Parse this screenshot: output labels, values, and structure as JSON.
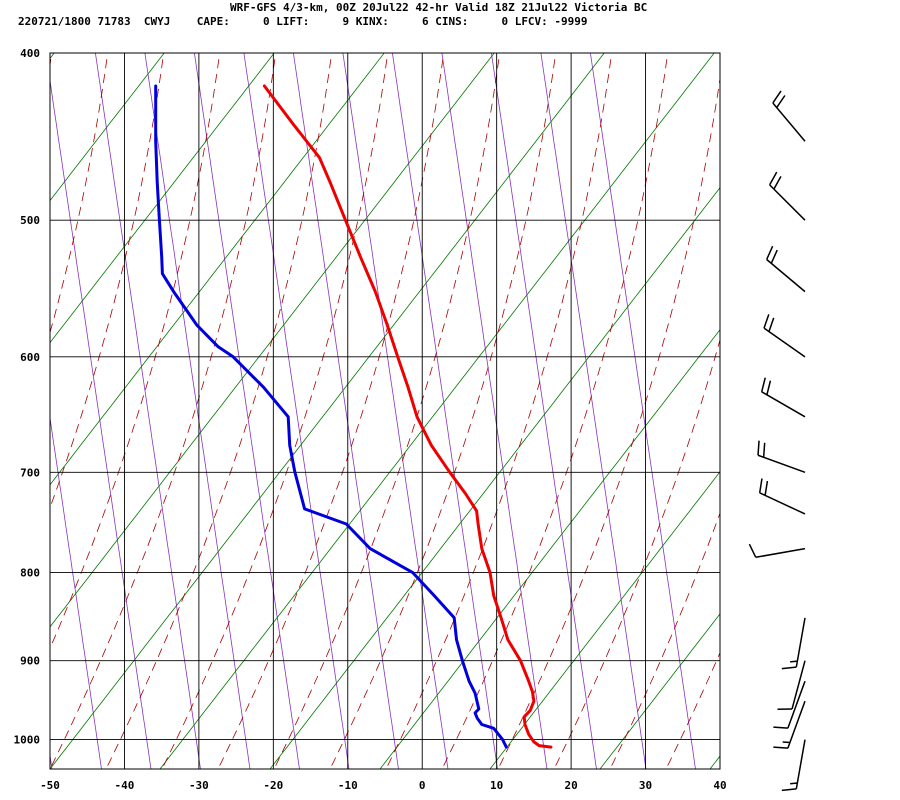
{
  "header": {
    "title": "WRF-GFS 4/3-km, 00Z 20Jul22 42-hr Valid 18Z 21Jul22 Victoria BC",
    "info": "220721/1800 71783  CWYJ    CAPE:     0 LIFT:     9 KINX:     6 CINS:     0 LFCV: -9999"
  },
  "colors": {
    "temperature": "#ee0000",
    "dewpoint": "#0000dd",
    "dry_adiabat": "#007700",
    "moist_adiabat": "#aa0000",
    "isotherm_diag": "#8833bb",
    "wind_barb": "#000000",
    "grid": "#000000"
  },
  "chart_data": {
    "type": "line",
    "subtype": "skew-T log-p sounding",
    "xlim": [
      -50,
      40
    ],
    "ylim": [
      1040,
      400
    ],
    "y_log_scale": true,
    "x_ticks": [
      -50,
      -40,
      -30,
      -20,
      -10,
      0,
      10,
      20,
      30,
      40
    ],
    "x_tick_labels": [
      "-50",
      "-40",
      "-30",
      "-20",
      "-10",
      "0",
      "10",
      "20",
      "30",
      "40"
    ],
    "y_ticks": [
      400,
      500,
      600,
      700,
      800,
      900,
      1000
    ],
    "y_tick_labels": [
      "400",
      "500",
      "600",
      "700",
      "800",
      "900",
      "1000"
    ],
    "grid": true,
    "series": [
      {
        "key": "temperature",
        "points": [
          [
            17.3,
            1010
          ],
          [
            15.7,
            1008
          ],
          [
            15.0,
            1003
          ],
          [
            14.3,
            993
          ],
          [
            13.8,
            980
          ],
          [
            13.7,
            970
          ],
          [
            14.5,
            962
          ],
          [
            15.0,
            950
          ],
          [
            14.8,
            938
          ],
          [
            14.3,
            925
          ],
          [
            13.2,
            900
          ],
          [
            11.5,
            875
          ],
          [
            10.6,
            850
          ],
          [
            9.6,
            825
          ],
          [
            9.1,
            800
          ],
          [
            8.0,
            775
          ],
          [
            7.5,
            750
          ],
          [
            7.3,
            737
          ],
          [
            5.8,
            720
          ],
          [
            3.7,
            700
          ],
          [
            1.2,
            675
          ],
          [
            -0.7,
            650
          ],
          [
            -1.9,
            625
          ],
          [
            -3.3,
            600
          ],
          [
            -4.7,
            575
          ],
          [
            -6.3,
            550
          ],
          [
            -8.3,
            525
          ],
          [
            -10.3,
            500
          ],
          [
            -12.4,
            475
          ],
          [
            -13.8,
            460
          ],
          [
            -17.3,
            440
          ],
          [
            -21.2,
            418
          ]
        ]
      },
      {
        "key": "dewpoint",
        "points": [
          [
            11.3,
            1010
          ],
          [
            10.8,
            1000
          ],
          [
            9.6,
            985
          ],
          [
            8.0,
            980
          ],
          [
            7.4,
            972
          ],
          [
            7.1,
            965
          ],
          [
            7.6,
            960
          ],
          [
            7.1,
            940
          ],
          [
            6.3,
            925
          ],
          [
            5.4,
            900
          ],
          [
            4.6,
            875
          ],
          [
            4.3,
            850
          ],
          [
            1.6,
            825
          ],
          [
            -1.3,
            800
          ],
          [
            -7.0,
            775
          ],
          [
            -10.2,
            750
          ],
          [
            -15.8,
            735
          ],
          [
            -17.1,
            700
          ],
          [
            -17.8,
            675
          ],
          [
            -18.0,
            650
          ],
          [
            -21.3,
            625
          ],
          [
            -25.4,
            600
          ],
          [
            -27.4,
            592
          ],
          [
            -30.3,
            575
          ],
          [
            -33.4,
            550
          ],
          [
            -34.9,
            537
          ],
          [
            -35.0,
            525
          ],
          [
            -35.3,
            500
          ],
          [
            -35.6,
            475
          ],
          [
            -35.8,
            450
          ],
          [
            -35.8,
            418
          ]
        ]
      }
    ],
    "wind_barbs": [
      {
        "p": 1000,
        "dir": 190,
        "speed": 15
      },
      {
        "p": 950,
        "dir": 200,
        "speed": 15
      },
      {
        "p": 925,
        "dir": 200,
        "speed": 10
      },
      {
        "p": 900,
        "dir": 195,
        "speed": 10
      },
      {
        "p": 850,
        "dir": 190,
        "speed": 15
      },
      {
        "p": 775,
        "dir": 260,
        "speed": 10
      },
      {
        "p": 740,
        "dir": 295,
        "speed": 20
      },
      {
        "p": 700,
        "dir": 290,
        "speed": 20
      },
      {
        "p": 650,
        "dir": 300,
        "speed": 20
      },
      {
        "p": 600,
        "dir": 305,
        "speed": 20
      },
      {
        "p": 550,
        "dir": 310,
        "speed": 20
      },
      {
        "p": 500,
        "dir": 315,
        "speed": 20
      },
      {
        "p": 450,
        "dir": 320,
        "speed": 20
      }
    ]
  }
}
